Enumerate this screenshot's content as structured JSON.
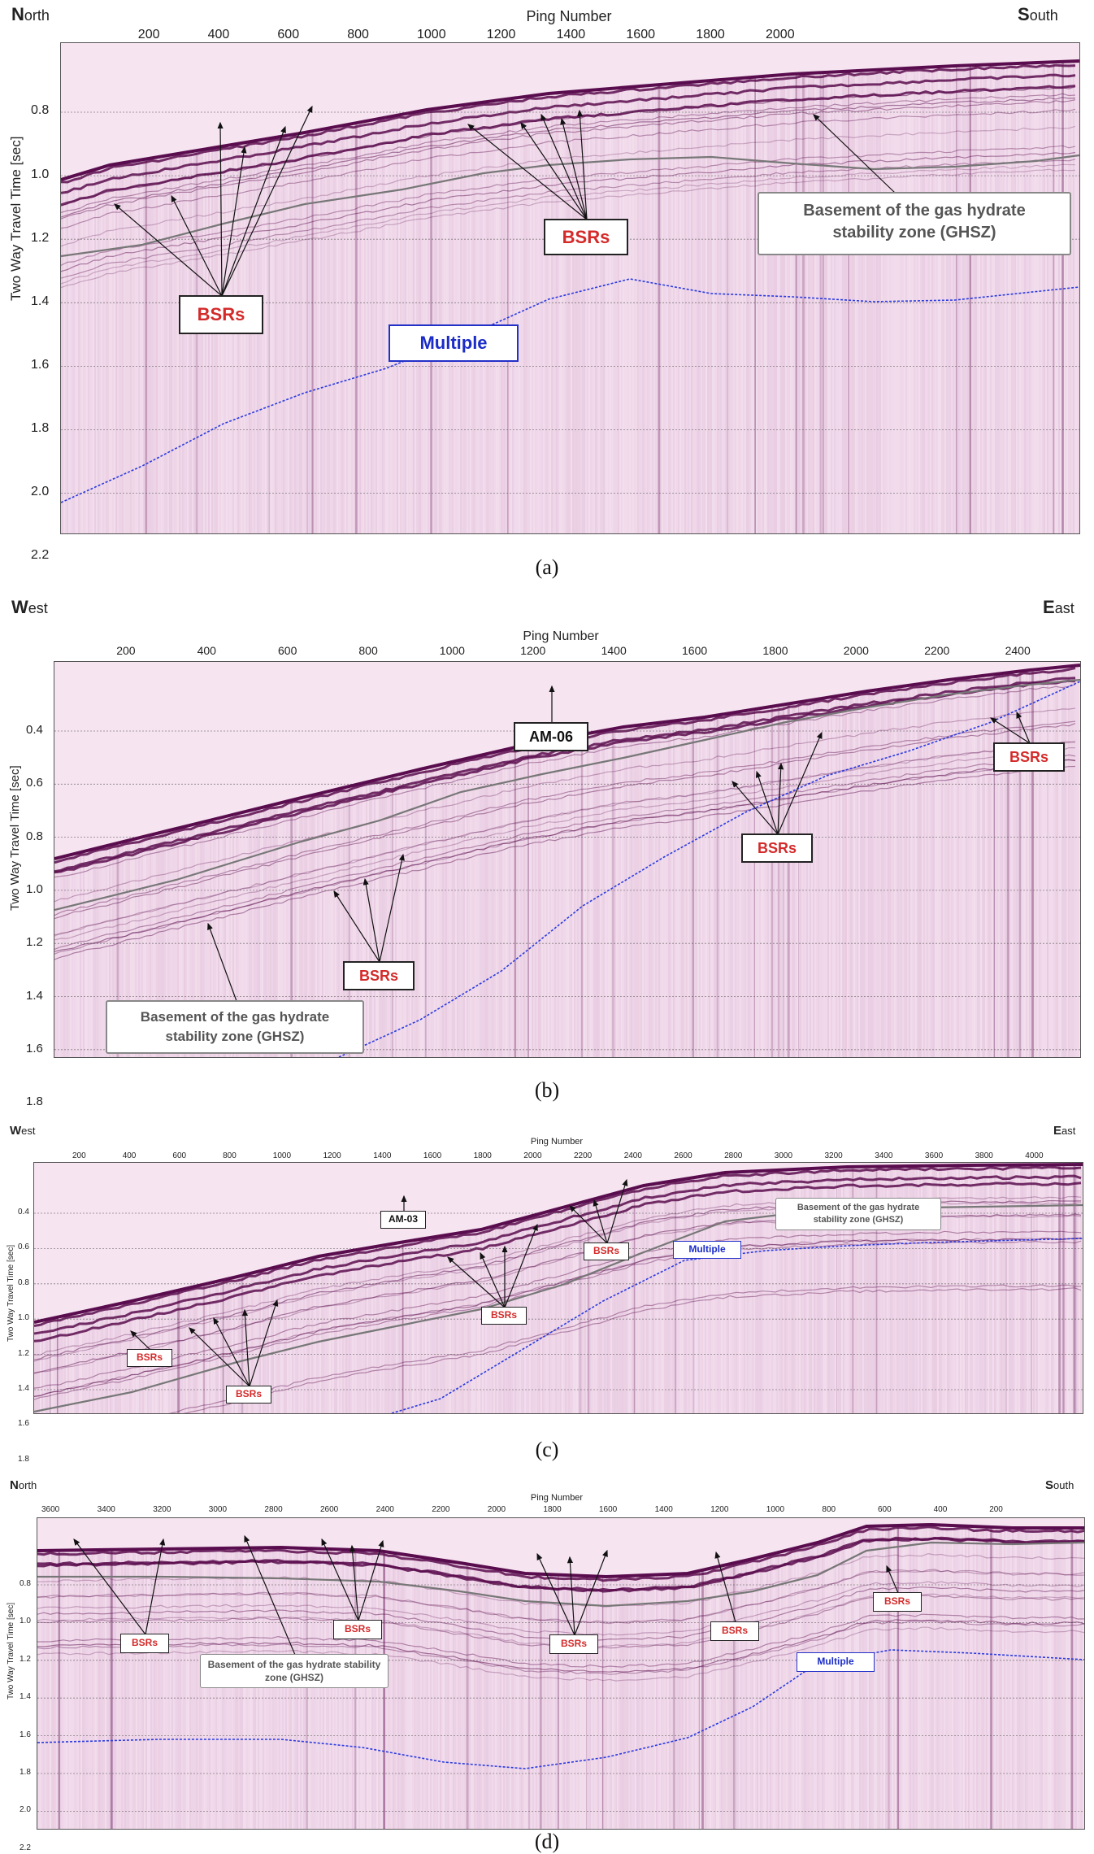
{
  "figure": {
    "panels": [
      {
        "id": "a",
        "caption": "(a)",
        "left_direction": {
          "initial": "N",
          "rest": "orth"
        },
        "right_direction": {
          "initial": "S",
          "rest": "outh"
        },
        "x_axis_title": "Ping Number",
        "y_axis_title": "Two Way Travel Time [sec]",
        "x_ticks": [
          "200",
          "400",
          "600",
          "800",
          "1000",
          "1200",
          "1400",
          "1600",
          "1800",
          "2000"
        ],
        "y_ticks": [
          "0.8",
          "1.0",
          "1.2",
          "1.4",
          "1.6",
          "1.8",
          "2.0",
          "2.2"
        ],
        "labels": {
          "bsr_1": "BSRs",
          "bsr_2": "BSRs",
          "multiple": "Multiple",
          "ghsz": "Basement of the gas hydrate stability zone (GHSZ)"
        }
      },
      {
        "id": "b",
        "caption": "(b)",
        "left_direction": {
          "initial": "W",
          "rest": "est"
        },
        "right_direction": {
          "initial": "E",
          "rest": "ast"
        },
        "x_axis_title": "Ping Number",
        "y_axis_title": "Two Way Travel Time [sec]",
        "x_ticks": [
          "200",
          "400",
          "600",
          "800",
          "1000",
          "1200",
          "1400",
          "1600",
          "1800",
          "2000",
          "2200",
          "2400"
        ],
        "y_ticks": [
          "0.4",
          "0.6",
          "0.8",
          "1.0",
          "1.2",
          "1.4",
          "1.6",
          "1.8"
        ],
        "labels": {
          "site": "AM-06",
          "bsr_1": "BSRs",
          "bsr_2": "BSRs",
          "bsr_3": "BSRs",
          "ghsz": "Basement of the gas hydrate stability zone (GHSZ)"
        }
      },
      {
        "id": "c",
        "caption": "(c)",
        "left_direction": {
          "initial": "W",
          "rest": "est"
        },
        "right_direction": {
          "initial": "E",
          "rest": "ast"
        },
        "x_axis_title": "Ping Number",
        "y_axis_title": "Two Way Travel Time [sec]",
        "x_ticks": [
          "200",
          "400",
          "600",
          "800",
          "1000",
          "1200",
          "1400",
          "1600",
          "1800",
          "2000",
          "2200",
          "2400",
          "2600",
          "2800",
          "3000",
          "3200",
          "3400",
          "3600",
          "3800",
          "4000"
        ],
        "y_ticks": [
          "0.4",
          "0.6",
          "0.8",
          "1.0",
          "1.2",
          "1.4",
          "1.6",
          "1.8"
        ],
        "labels": {
          "site": "AM-03",
          "bsr_1": "BSRs",
          "bsr_2": "BSRs",
          "bsr_3": "BSRs",
          "bsr_4": "BSRs",
          "multiple": "Multiple",
          "ghsz": "Basement of the gas hydrate stability zone (GHSZ)"
        }
      },
      {
        "id": "d",
        "caption": "(d)",
        "left_direction": {
          "initial": "N",
          "rest": "orth"
        },
        "right_direction": {
          "initial": "S",
          "rest": "outh"
        },
        "x_axis_title": "Ping Number",
        "y_axis_title": "Two Way Travel Time [sec]",
        "x_ticks": [
          "3600",
          "3400",
          "3200",
          "3000",
          "2800",
          "2600",
          "2400",
          "2200",
          "2000",
          "1800",
          "1600",
          "1400",
          "1200",
          "1000",
          "800",
          "600",
          "400",
          "200"
        ],
        "y_ticks": [
          "0.8",
          "1.0",
          "1.2",
          "1.4",
          "1.6",
          "1.8",
          "2.0",
          "2.2"
        ],
        "labels": {
          "bsr_1": "BSRs",
          "bsr_2": "BSRs",
          "bsr_3": "BSRs",
          "bsr_4": "BSRs",
          "bsr_5": "BSRs",
          "multiple": "Multiple",
          "ghsz": "Basement of the gas hydrate stability zone (GHSZ)"
        }
      }
    ]
  },
  "colors": {
    "background": "#f6e4f1",
    "seismic_dark": "#5a0d4e",
    "seismic_mid": "#9a3a86",
    "ghsz_line": "#777777",
    "multiple_line": "#2a3ae0",
    "bsr_text": "#d42a2a",
    "multiple_text": "#1b2cc8"
  }
}
